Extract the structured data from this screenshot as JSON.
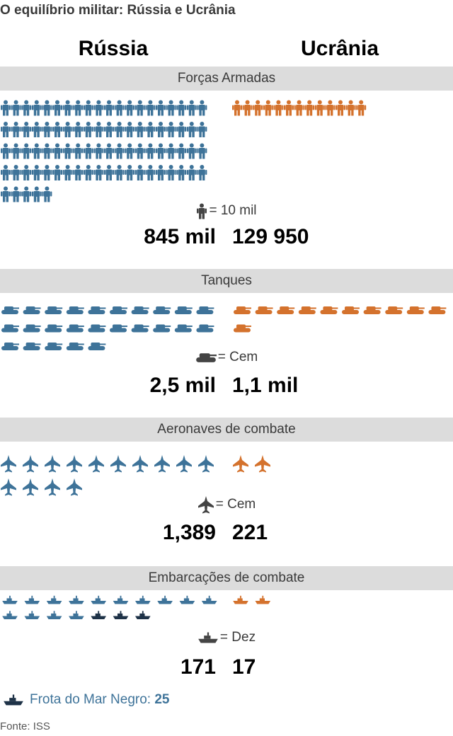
{
  "title": "O equilíbrio militar: Rússia e Ucrânia",
  "countries": {
    "russia": "Rússia",
    "ukraine": "Ucrânia"
  },
  "colors": {
    "russia": "#3e7399",
    "ukraine": "#d4722d",
    "black_sea": "#1e3247",
    "legend_icon": "#444444"
  },
  "chart_data": [
    {
      "type": "pictogram",
      "title": "Forças Armadas",
      "unit_icon": "soldier-icon",
      "unit_label": "= 10 mil",
      "series": [
        {
          "name": "Rússia",
          "value_label": "845 mil",
          "icons": 85
        },
        {
          "name": "Ucrânia",
          "value_label": "129 950",
          "icons": 13
        }
      ]
    },
    {
      "type": "pictogram",
      "title": "Tanques",
      "unit_icon": "tank-icon",
      "unit_label": "= Cem",
      "series": [
        {
          "name": "Rússia",
          "value_label": "2,5 mil",
          "icons": 25
        },
        {
          "name": "Ucrânia",
          "value_label": "1,1 mil",
          "icons": 11
        }
      ]
    },
    {
      "type": "pictogram",
      "title": "Aeronaves de combate",
      "unit_icon": "jet-icon",
      "unit_label": "= Cem",
      "series": [
        {
          "name": "Rússia",
          "value_label": "1,389",
          "icons": 14
        },
        {
          "name": "Ucrânia",
          "value_label": "221",
          "icons": 2
        }
      ]
    },
    {
      "type": "pictogram",
      "title": "Embarcações de combate",
      "unit_icon": "ship-icon",
      "unit_label": "= Dez",
      "series": [
        {
          "name": "Rússia",
          "value_label": "171",
          "icons": 17,
          "highlight_from": 14,
          "highlight_count": 3
        },
        {
          "name": "Ucrânia",
          "value_label": "17",
          "icons": 2
        }
      ]
    }
  ],
  "footnote": {
    "label": "Frota do Mar Negro:",
    "value": "25"
  },
  "source": "Fonte: ISS"
}
